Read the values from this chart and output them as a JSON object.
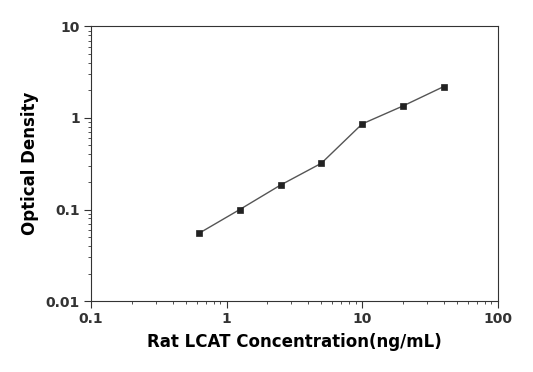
{
  "x": [
    0.625,
    1.25,
    2.5,
    5,
    10,
    20,
    40
  ],
  "y": [
    0.055,
    0.1,
    0.185,
    0.32,
    0.86,
    1.35,
    2.2
  ],
  "xlabel": "Rat LCAT Concentration(ng/mL)",
  "ylabel": "Optical Density",
  "xlim": [
    0.1,
    100
  ],
  "ylim": [
    0.01,
    10
  ],
  "line_color": "#555555",
  "marker_color": "#222222",
  "marker": "s",
  "marker_size": 5,
  "line_width": 1.0,
  "background_color": "#ffffff",
  "xlabel_fontsize": 12,
  "ylabel_fontsize": 12,
  "tick_fontsize": 10,
  "xtick_labels": [
    "0.1",
    "1",
    "10",
    "100"
  ],
  "xtick_values": [
    0.1,
    1,
    10,
    100
  ],
  "ytick_labels": [
    "0.01",
    "0.1",
    "1",
    "10"
  ],
  "ytick_values": [
    0.01,
    0.1,
    1,
    10
  ]
}
